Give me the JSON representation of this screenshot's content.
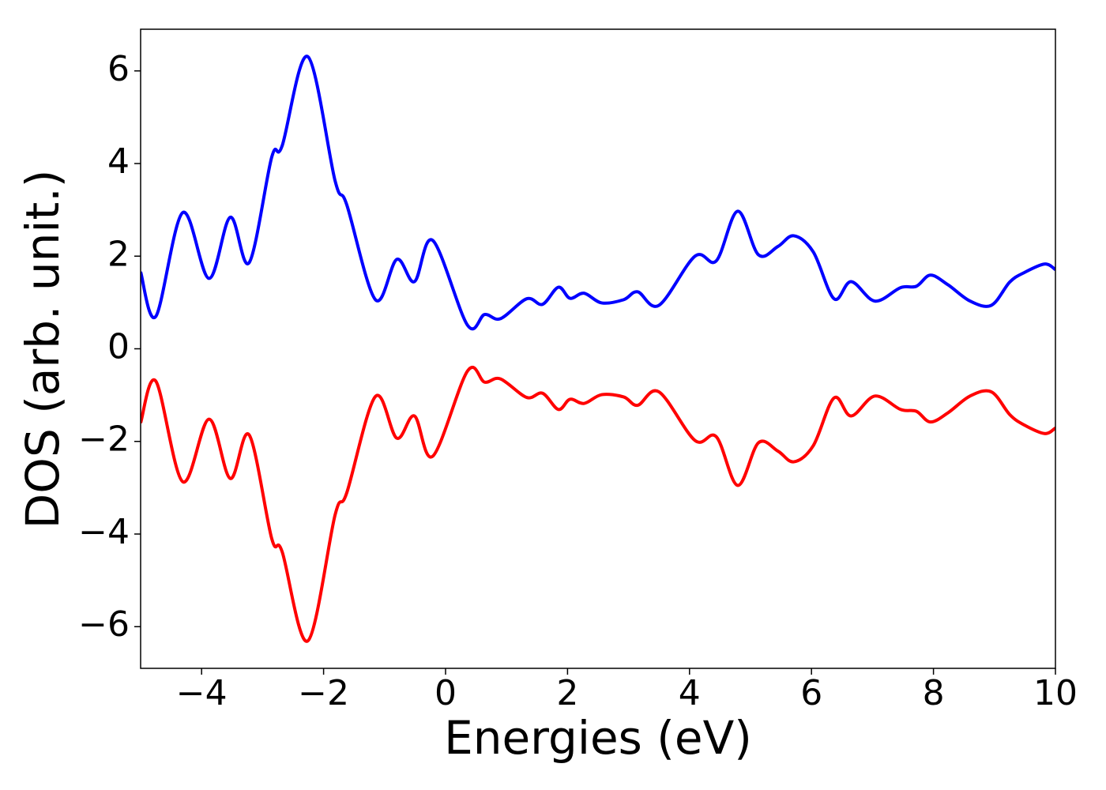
{
  "chart_data": {
    "type": "line",
    "xlabel": "Energies (eV)",
    "ylabel": "DOS (arb. unit.)",
    "xlim": [
      -5,
      10
    ],
    "ylim": [
      -6.9,
      6.9
    ],
    "xticks": [
      {
        "value": -4,
        "label": "−4"
      },
      {
        "value": -2,
        "label": "−2"
      },
      0,
      2,
      4,
      6,
      8,
      10
    ],
    "yticks": [
      {
        "value": -6,
        "label": "−6"
      },
      {
        "value": -4,
        "label": "−4"
      },
      {
        "value": -2,
        "label": "−2"
      },
      0,
      2,
      4,
      6
    ],
    "grid": false,
    "x": [
      -5,
      -4.75,
      -4.31,
      -3.88,
      -3.53,
      -3.22,
      -2.85,
      -2.68,
      -2.26,
      -1.81,
      -1.62,
      -1.15,
      -0.8,
      -0.51,
      -0.21,
      0.36,
      0.64,
      0.9,
      1.33,
      1.59,
      1.85,
      2.04,
      2.27,
      2.56,
      2.92,
      3.15,
      3.5,
      4.09,
      4.44,
      4.79,
      5.13,
      5.45,
      5.71,
      6.03,
      6.37,
      6.65,
      7.04,
      7.46,
      7.72,
      7.95,
      8.24,
      8.6,
      8.95,
      9.25,
      9.48,
      9.82,
      10
    ],
    "series": [
      {
        "color": "#0000ff",
        "values": [
          1.66,
          0.7,
          2.94,
          1.52,
          2.84,
          1.86,
          4.14,
          4.38,
          6.31,
          3.62,
          3.11,
          1.06,
          1.93,
          1.45,
          2.34,
          0.51,
          0.74,
          0.65,
          1.08,
          0.96,
          1.33,
          1.09,
          1.2,
          0.99,
          1.06,
          1.23,
          0.94,
          2.0,
          1.9,
          2.97,
          2.03,
          2.21,
          2.44,
          2.09,
          1.08,
          1.45,
          1.03,
          1.32,
          1.35,
          1.59,
          1.38,
          1.03,
          0.94,
          1.44,
          1.64,
          1.83,
          1.71
        ]
      },
      {
        "color": "#ff0000",
        "values": [
          -1.6,
          -0.7,
          -2.87,
          -1.52,
          -2.8,
          -1.86,
          -4.1,
          -4.38,
          -6.31,
          -3.58,
          -3.11,
          -1.03,
          -1.93,
          -1.45,
          -2.32,
          -0.48,
          -0.72,
          -0.65,
          -1.05,
          -0.96,
          -1.31,
          -1.09,
          -1.18,
          -0.99,
          -1.04,
          -1.22,
          -0.93,
          -1.98,
          -1.9,
          -2.95,
          -2.03,
          -2.21,
          -2.44,
          -2.09,
          -1.06,
          -1.45,
          -1.02,
          -1.31,
          -1.35,
          -1.58,
          -1.38,
          -1.02,
          -0.93,
          -1.42,
          -1.64,
          -1.83,
          -1.71
        ]
      }
    ]
  }
}
